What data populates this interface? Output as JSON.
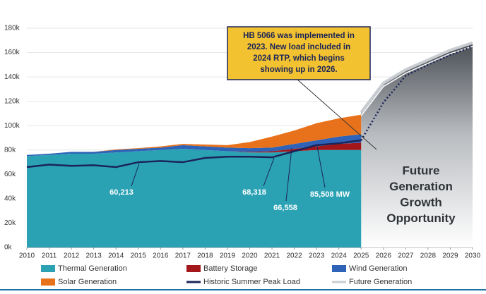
{
  "chart_data": {
    "type": "stacked_area",
    "x": [
      2010,
      2011,
      2012,
      2013,
      2014,
      2015,
      2016,
      2017,
      2018,
      2019,
      2020,
      2021,
      2022,
      2023,
      2024,
      2025
    ],
    "series": [
      {
        "name": "Thermal Generation",
        "color": "#2aa2b4",
        "values": [
          75000,
          76000,
          77000,
          77000,
          78000,
          79000,
          80000,
          81000,
          80000,
          79000,
          78000,
          78000,
          79000,
          80000,
          80000,
          80000
        ]
      },
      {
        "name": "Battery Storage",
        "color": "#a3171b",
        "values": [
          0,
          0,
          0,
          0,
          0,
          0,
          0,
          0,
          0,
          0,
          500,
          1000,
          2000,
          3000,
          5000,
          6000
        ]
      },
      {
        "name": "Wind Generation",
        "color": "#2e63b8",
        "values": [
          1000,
          1000,
          1500,
          1500,
          2000,
          2000,
          2000,
          3000,
          3000,
          3000,
          3000,
          3000,
          4000,
          5000,
          6000,
          7000
        ]
      },
      {
        "name": "Solar Generation",
        "color": "#e8721c",
        "values": [
          0,
          0,
          0,
          0,
          500,
          500,
          1000,
          1000,
          1500,
          2000,
          5000,
          9000,
          11000,
          14000,
          15000,
          16000
        ]
      }
    ],
    "lines": [
      {
        "name": "Historic Summer Peak Load",
        "color": "#1b2458",
        "dashed_from": 2025,
        "x": [
          2010,
          2011,
          2012,
          2013,
          2014,
          2015,
          2016,
          2017,
          2018,
          2019,
          2020,
          2021,
          2022,
          2023,
          2024,
          2025,
          2026,
          2027,
          2028,
          2029,
          2030
        ],
        "values": [
          66000,
          68000,
          67000,
          67500,
          66000,
          70000,
          71000,
          70000,
          73500,
          74500,
          74500,
          74000,
          79000,
          84000,
          85500,
          88000,
          119000,
          141000,
          150000,
          158000,
          165000
        ]
      },
      {
        "name": "Future Generation",
        "color": "#c9cdd1",
        "x": [
          2025,
          2026,
          2027,
          2028,
          2029,
          2030
        ],
        "values": [
          111000,
          135000,
          146000,
          154000,
          162000,
          168000
        ]
      }
    ],
    "xlim": [
      2010,
      2030
    ],
    "xticks": [
      2010,
      2011,
      2012,
      2013,
      2014,
      2015,
      2016,
      2017,
      2018,
      2019,
      2020,
      2021,
      2022,
      2023,
      2024,
      2025,
      2026,
      2027,
      2028,
      2029,
      2030
    ],
    "ylim": [
      0,
      180000
    ],
    "yticks": [
      {
        "value": 0,
        "label": "0k"
      },
      {
        "value": 20000,
        "label": "20k"
      },
      {
        "value": 40000,
        "label": "40k"
      },
      {
        "value": 60000,
        "label": "60k"
      },
      {
        "value": 80000,
        "label": "80k"
      },
      {
        "value": 100000,
        "label": "100k"
      },
      {
        "value": 120000,
        "label": "120k"
      },
      {
        "value": 140000,
        "label": "140k"
      },
      {
        "value": 160000,
        "label": "160k"
      },
      {
        "value": 180000,
        "label": "180k"
      }
    ],
    "grid": true,
    "annotations": [
      "60,213",
      "68,318",
      "66,558",
      "85,508 MW"
    ],
    "callout": [
      "HB 5066 was implemented in",
      "2023. New load included in",
      "2024 RTP, which begins",
      "showing up in 2026."
    ],
    "overlay_text": [
      "Future",
      "Generation",
      "Growth",
      "Opportunity"
    ]
  }
}
